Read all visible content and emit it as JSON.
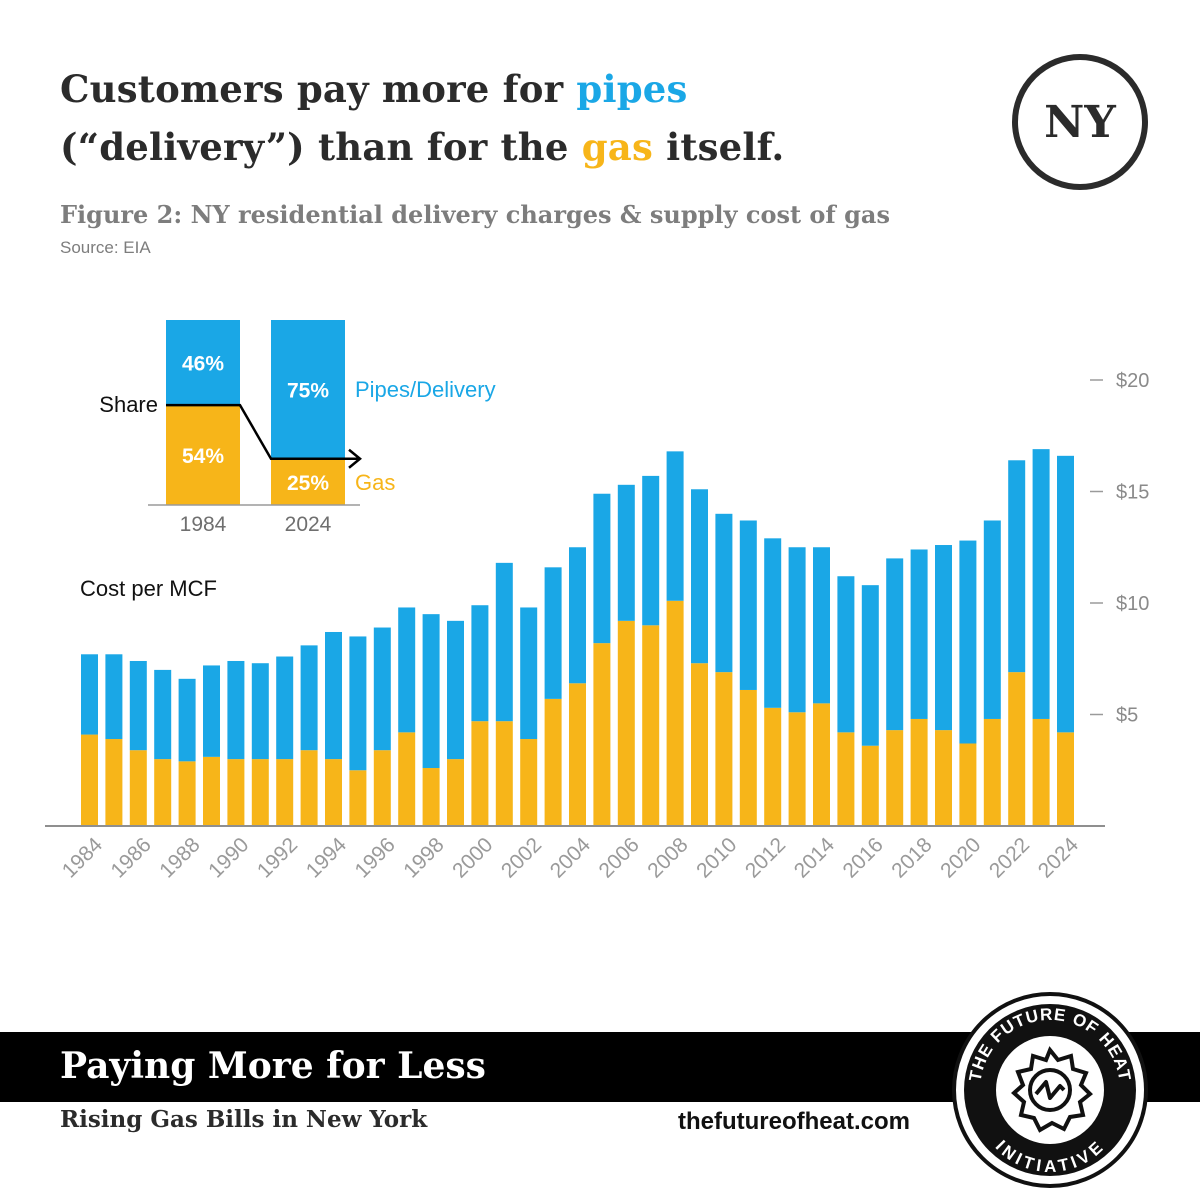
{
  "headline": {
    "line1_pre": "Customers pay more for ",
    "line1_highlight": "pipes",
    "line2_pre": "(“delivery”) than for the ",
    "line2_highlight": "gas",
    "line2_post": " itself."
  },
  "badge": "NY",
  "figure_title": "Figure 2: NY residential delivery charges & supply cost of gas",
  "source": "Source: EIA",
  "colors": {
    "delivery": "#1aa7e6",
    "gas": "#f7b519",
    "text": "#2b2b2b",
    "muted": "#8a8a8a"
  },
  "chart_data": [
    {
      "type": "bar",
      "stacked": true,
      "title": "Cost per MCF",
      "categories": [
        "1984",
        "1985",
        "1986",
        "1987",
        "1988",
        "1989",
        "1990",
        "1991",
        "1992",
        "1993",
        "1994",
        "1995",
        "1996",
        "1997",
        "1998",
        "1999",
        "2000",
        "2001",
        "2002",
        "2003",
        "2004",
        "2005",
        "2006",
        "2007",
        "2008",
        "2009",
        "2010",
        "2011",
        "2012",
        "2013",
        "2014",
        "2015",
        "2016",
        "2017",
        "2018",
        "2019",
        "2020",
        "2021",
        "2022",
        "2023",
        "2024"
      ],
      "x_tick_labels": [
        "1984",
        "1986",
        "1988",
        "1990",
        "1992",
        "1994",
        "1996",
        "1998",
        "2000",
        "2002",
        "2004",
        "2006",
        "2008",
        "2010",
        "2012",
        "2014",
        "2016",
        "2018",
        "2020",
        "2022",
        "2024"
      ],
      "series": [
        {
          "name": "Gas",
          "values": [
            4.1,
            3.9,
            3.4,
            3.0,
            2.9,
            3.1,
            3.0,
            3.0,
            3.0,
            3.4,
            3.0,
            2.5,
            3.4,
            4.2,
            2.6,
            3.0,
            4.7,
            4.7,
            3.9,
            5.7,
            6.4,
            8.2,
            9.2,
            9.0,
            10.1,
            7.3,
            6.9,
            6.1,
            5.3,
            5.1,
            5.5,
            4.2,
            3.6,
            4.3,
            4.8,
            4.3,
            3.7,
            4.8,
            6.9,
            4.8,
            4.2
          ]
        },
        {
          "name": "Pipes/Delivery",
          "values": [
            3.6,
            3.8,
            4.0,
            4.0,
            3.7,
            4.1,
            4.4,
            4.3,
            4.6,
            4.7,
            5.7,
            6.0,
            5.5,
            5.6,
            6.9,
            6.2,
            5.2,
            7.1,
            5.9,
            5.9,
            6.1,
            6.7,
            6.1,
            6.7,
            6.7,
            7.8,
            7.1,
            7.6,
            7.6,
            7.4,
            7.0,
            7.0,
            7.2,
            7.7,
            7.6,
            8.3,
            9.1,
            8.9,
            9.5,
            12.1,
            12.4
          ]
        }
      ],
      "ylim": [
        0,
        22
      ],
      "y_ticks": [
        {
          "value": 5,
          "label": "$5"
        },
        {
          "value": 10,
          "label": "$10"
        },
        {
          "value": 15,
          "label": "$15"
        },
        {
          "value": 20,
          "label": "$20"
        }
      ],
      "y_axis_side": "right"
    },
    {
      "type": "bar",
      "stacked": true,
      "percent": true,
      "title": "Share",
      "categories": [
        "1984",
        "2024"
      ],
      "series": [
        {
          "name": "Gas",
          "values": [
            54,
            25
          ],
          "labels": [
            "54%",
            "25%"
          ]
        },
        {
          "name": "Pipes/Delivery",
          "values": [
            46,
            75
          ],
          "labels": [
            "46%",
            "75%"
          ]
        }
      ],
      "legend": [
        "Pipes/Delivery",
        "Gas"
      ]
    }
  ],
  "footer": {
    "title": "Paying More for Less",
    "subtitle": "Rising Gas Bills in New York",
    "url": "thefutureofheat.com"
  },
  "logo": {
    "top": "THE FUTURE OF HEAT",
    "bottom": "INITIATIVE"
  }
}
